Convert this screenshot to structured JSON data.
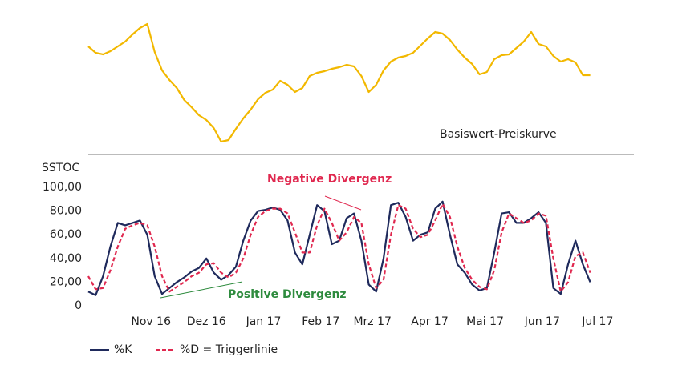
{
  "chart_data": [
    {
      "type": "line",
      "annotation": "Basiswert-Preiskurve",
      "x": [
        0,
        4,
        8,
        12,
        16,
        20,
        24,
        28,
        32,
        36,
        40,
        44,
        48,
        52,
        56,
        60,
        64,
        68,
        72,
        76,
        80,
        84,
        88,
        92,
        96,
        100,
        104,
        108,
        112,
        116,
        120,
        124,
        128,
        132,
        136,
        140,
        144,
        148,
        152,
        156,
        160,
        164,
        168,
        172,
        176,
        180,
        184,
        188,
        192,
        196,
        200,
        204,
        208,
        212,
        216,
        220,
        224,
        228,
        232,
        236,
        240,
        244,
        248,
        252,
        256,
        260,
        264,
        268,
        272
      ],
      "xlim": [
        0,
        280
      ],
      "ylim": [
        20,
        180
      ],
      "series": [
        {
          "color": "#f2b800",
          "values": [
            142,
            134,
            132,
            136,
            142,
            148,
            157,
            165,
            170,
            135,
            112,
            100,
            90,
            75,
            66,
            56,
            50,
            40,
            23,
            25,
            39,
            52,
            63,
            76,
            84,
            88,
            99,
            94,
            85,
            90,
            105,
            109,
            111,
            114,
            116,
            119,
            117,
            105,
            85,
            94,
            112,
            123,
            128,
            130,
            134,
            143,
            152,
            160,
            158,
            150,
            138,
            128,
            120,
            107,
            110,
            126,
            131,
            132,
            140,
            148,
            160,
            145,
            142,
            130,
            123,
            126,
            122,
            106,
            106
          ]
        }
      ]
    },
    {
      "type": "line",
      "y_label": "SSTOC",
      "x": [
        0,
        4,
        8,
        12,
        16,
        20,
        24,
        28,
        32,
        36,
        40,
        44,
        48,
        52,
        56,
        60,
        64,
        68,
        72,
        76,
        80,
        84,
        88,
        92,
        96,
        100,
        104,
        108,
        112,
        116,
        120,
        124,
        128,
        132,
        136,
        140,
        144,
        148,
        152,
        156,
        160,
        164,
        168,
        172,
        176,
        180,
        184,
        188,
        192,
        196,
        200,
        204,
        208,
        212,
        216,
        220,
        224,
        228,
        232,
        236,
        240,
        244,
        248,
        252,
        256,
        260,
        264,
        268,
        272
      ],
      "xlim": [
        0,
        280
      ],
      "xticks": [
        {
          "value": 34,
          "label": "Nov 16"
        },
        {
          "value": 64,
          "label": "Dez 16"
        },
        {
          "value": 95,
          "label": "Jan 17"
        },
        {
          "value": 126,
          "label": "Feb 17"
        },
        {
          "value": 154,
          "label": "Mrz 17"
        },
        {
          "value": 185,
          "label": "Apr 17"
        },
        {
          "value": 215,
          "label": "Mai 17"
        },
        {
          "value": 246,
          "label": "Jun 17"
        },
        {
          "value": 276,
          "label": "Jul 17"
        }
      ],
      "ylim": [
        0,
        100
      ],
      "yticks": [
        0,
        {
          "value": 20,
          "label": "20,00"
        },
        {
          "value": 40,
          "label": "40,00"
        },
        {
          "value": 60,
          "label": "60,00"
        },
        {
          "value": 80,
          "label": "80,00"
        },
        {
          "value": 100,
          "label": "100,00"
        }
      ],
      "annotations": [
        {
          "text": "Negative Divergenz",
          "color": "#e0284f"
        },
        {
          "text": "Positive Divergenz",
          "color": "#2e8b3e"
        }
      ],
      "series": [
        {
          "name": "%K",
          "color": "#1f2a5c",
          "dashed": false,
          "values": [
            12,
            9,
            25,
            50,
            70,
            68,
            70,
            72,
            60,
            25,
            10,
            15,
            20,
            24,
            29,
            32,
            40,
            28,
            22,
            26,
            33,
            55,
            72,
            80,
            81,
            83,
            81,
            72,
            45,
            35,
            60,
            85,
            80,
            52,
            55,
            74,
            78,
            55,
            18,
            12,
            40,
            85,
            87,
            75,
            55,
            60,
            62,
            82,
            88,
            60,
            35,
            28,
            18,
            13,
            15,
            45,
            78,
            79,
            70,
            70,
            74,
            79,
            70,
            15,
            10,
            35,
            55,
            35,
            20
          ]
        },
        {
          "name": "%D = Triggerlinie",
          "color": "#e0284f",
          "dashed": true,
          "values": [
            25,
            14,
            15,
            30,
            50,
            65,
            68,
            70,
            68,
            50,
            25,
            12,
            16,
            20,
            25,
            28,
            35,
            36,
            28,
            24,
            28,
            40,
            60,
            75,
            80,
            82,
            82,
            78,
            62,
            45,
            45,
            68,
            82,
            70,
            55,
            62,
            75,
            70,
            35,
            15,
            22,
            60,
            85,
            82,
            65,
            58,
            60,
            72,
            86,
            75,
            50,
            32,
            22,
            16,
            14,
            30,
            62,
            78,
            74,
            70,
            72,
            78,
            76,
            40,
            12,
            20,
            42,
            45,
            28
          ]
        }
      ]
    }
  ]
}
